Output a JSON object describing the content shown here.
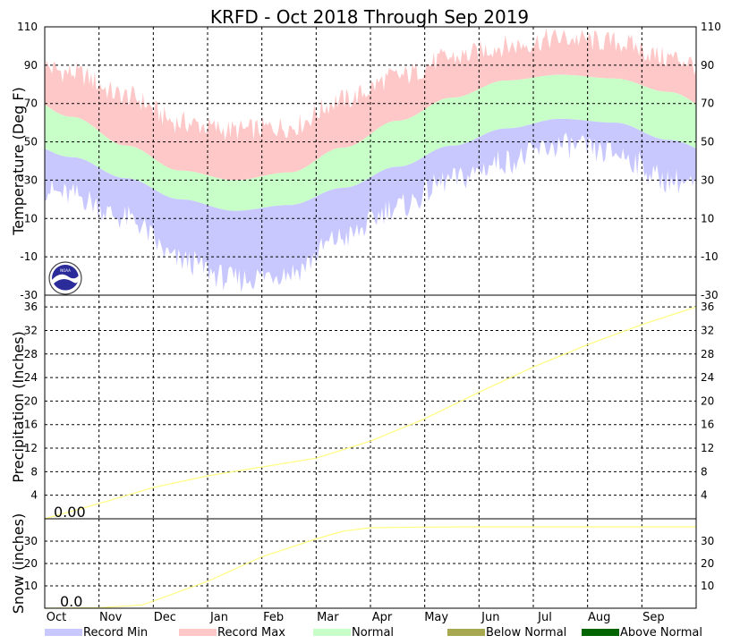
{
  "chart_data": {
    "type": "area",
    "title": "KRFD - Oct 2018 Through Sep 2019",
    "months": [
      "Oct",
      "Nov",
      "Dec",
      "Jan",
      "Feb",
      "Mar",
      "Apr",
      "May",
      "Jun",
      "Jul",
      "Aug",
      "Sep"
    ],
    "colors": {
      "record_min": "#c8c8ff",
      "record_max": "#ffc8c8",
      "normal": "#c8ffc8",
      "below_normal": "#a8a850",
      "above_normal": "#006400",
      "precip_line": "#ffff80",
      "grid": "#000000"
    },
    "legend": [
      {
        "key": "record_min",
        "label": "Record Min"
      },
      {
        "key": "record_max",
        "label": "Record Max"
      },
      {
        "key": "normal",
        "label": "Normal"
      },
      {
        "key": "below_normal",
        "label": "Below Normal"
      },
      {
        "key": "above_normal",
        "label": "Above Normal"
      }
    ],
    "temperature": {
      "ylabel": "Temperature (Deg F)",
      "ylim": [
        -30,
        110
      ],
      "ticks": [
        -30,
        -10,
        10,
        30,
        50,
        70,
        90,
        110
      ],
      "record_max_monthly": [
        86,
        74,
        60,
        56,
        58,
        72,
        84,
        94,
        100,
        104,
        102,
        94
      ],
      "normal_high_monthly": [
        63,
        48,
        35,
        30,
        34,
        47,
        61,
        73,
        82,
        85,
        83,
        76
      ],
      "normal_low_monthly": [
        42,
        31,
        20,
        14,
        17,
        26,
        37,
        48,
        57,
        62,
        60,
        51
      ],
      "record_min_monthly": [
        22,
        10,
        -12,
        -22,
        -18,
        0,
        16,
        30,
        40,
        48,
        44,
        30
      ]
    },
    "precipitation": {
      "ylabel": "Precipitation (Inches)",
      "ylim": [
        0,
        38
      ],
      "ticks": [
        4,
        8,
        12,
        16,
        20,
        24,
        28,
        32,
        36
      ],
      "observed_label": "0.00",
      "normal_cumulative_x_months": [
        0,
        1,
        2,
        3,
        4,
        5,
        6,
        7,
        8,
        9,
        10,
        11,
        12
      ],
      "normal_cumulative_in": [
        0,
        2.6,
        5.3,
        7.3,
        8.8,
        10.3,
        13.2,
        17.0,
        21.5,
        25.8,
        29.6,
        33.0,
        36.0
      ]
    },
    "snow": {
      "ylabel": "Snow (inches)",
      "ylim": [
        0,
        40
      ],
      "ticks": [
        10,
        20,
        30
      ],
      "observed_label": "0.0",
      "normal_cumulative_x_months": [
        0,
        1,
        1.8,
        3,
        4,
        5,
        5.5,
        6,
        7,
        8,
        9,
        10,
        11,
        12
      ],
      "normal_cumulative_in": [
        0,
        0.2,
        1.5,
        12.0,
        23.0,
        31.0,
        34.5,
        36.0,
        36.3,
        36.4,
        36.4,
        36.4,
        36.4,
        36.4
      ]
    }
  }
}
